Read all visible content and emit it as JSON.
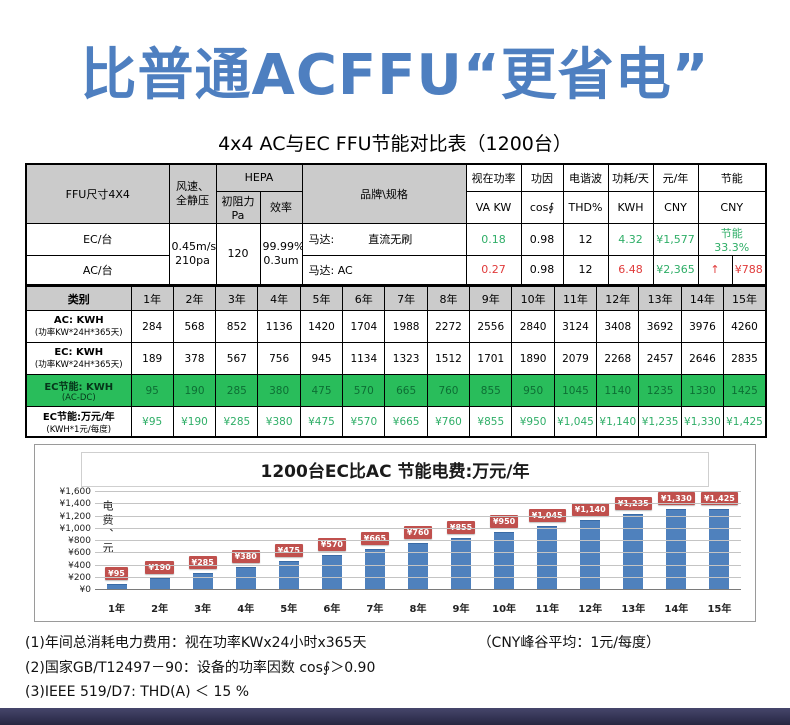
{
  "hero": {
    "title": "比普通ACFFU“更省电”"
  },
  "table_title": "4x4 AC与EC FFU节能对比表（1200台）",
  "spec_table": {
    "headers": {
      "ffu_size": "FFU尺寸4X4",
      "wind": "风速、\n全静压",
      "hepa": "HEPA",
      "initial_resistance": "初阻力Pa",
      "efficiency": "效率",
      "brand_spec": "品牌\\规格",
      "apparent_power": "视在功率",
      "va_kw": "VA KW",
      "power_factor": "功因",
      "cos": "cos∮",
      "harmonics": "电谐波",
      "thd": "THD%",
      "consumption_day": "功耗/天",
      "kwh": "KWH",
      "yuan_year": "元/年",
      "cny1": "CNY",
      "saving": "节能",
      "cny2": "CNY"
    },
    "shared": {
      "wind_value": "0.45m/s\n210pa",
      "resistance_value": "120",
      "efficiency_value": "99.99%\n0.3um"
    },
    "ec_row": {
      "label": "EC/台",
      "motor_label": "马达:",
      "motor_value": "直流无刷",
      "va": "0.18",
      "cos": "0.98",
      "thd": "12",
      "kwh": "4.32",
      "cny": "¥1,577",
      "saving_label": "节能",
      "saving_value": "33.3%"
    },
    "ac_row": {
      "label": "AC/台",
      "motor": "马达: AC",
      "va": "0.27",
      "cos": "0.98",
      "thd": "12",
      "kwh": "6.48",
      "cny": "¥2,365",
      "arrow": "↑",
      "amount": "¥788"
    }
  },
  "years_table": {
    "category_header": "类别",
    "year_labels": [
      "1年",
      "2年",
      "3年",
      "4年",
      "5年",
      "6年",
      "7年",
      "8年",
      "9年",
      "10年",
      "11年",
      "12年",
      "13年",
      "14年",
      "15年"
    ],
    "rows": [
      {
        "label_line1": "AC: KWH",
        "label_line2": "(功率KW*24H*365天)",
        "style": "plain",
        "values": [
          "284",
          "568",
          "852",
          "1136",
          "1420",
          "1704",
          "1988",
          "2272",
          "2556",
          "2840",
          "3124",
          "3408",
          "3692",
          "3976",
          "4260"
        ]
      },
      {
        "label_line1": "EC: KWH",
        "label_line2": "(功率KW*24H*365天)",
        "style": "plain",
        "values": [
          "189",
          "378",
          "567",
          "756",
          "945",
          "1134",
          "1323",
          "1512",
          "1701",
          "1890",
          "2079",
          "2268",
          "2457",
          "2646",
          "2835"
        ]
      },
      {
        "label_line1": "EC节能: KWH",
        "label_line2": "(AC-DC)",
        "style": "green",
        "values": [
          "95",
          "190",
          "285",
          "380",
          "475",
          "570",
          "665",
          "760",
          "855",
          "950",
          "1045",
          "1140",
          "1235",
          "1330",
          "1425"
        ]
      },
      {
        "label_line1": "EC节能:万元/年",
        "label_line2": "(KWH*1元/每度)",
        "style": "green-text",
        "values": [
          "¥95",
          "¥190",
          "¥285",
          "¥380",
          "¥475",
          "¥570",
          "¥665",
          "¥760",
          "¥855",
          "¥950",
          "¥1,045",
          "¥1,140",
          "¥1,235",
          "¥1,330",
          "¥1,425"
        ]
      }
    ]
  },
  "chart_data": {
    "type": "bar",
    "title": "1200台EC比AC 节能电费:万元/年",
    "ylabel": "电费、元",
    "xlabel": "",
    "categories": [
      "1年",
      "2年",
      "3年",
      "4年",
      "5年",
      "6年",
      "7年",
      "8年",
      "9年",
      "10年",
      "11年",
      "12年",
      "13年",
      "14年",
      "15年"
    ],
    "values": [
      95,
      190,
      285,
      380,
      475,
      570,
      665,
      760,
      855,
      950,
      1045,
      1140,
      1235,
      1330,
      1425
    ],
    "labels": [
      "¥95",
      "¥190",
      "¥285",
      "¥380",
      "¥475",
      "¥570",
      "¥665",
      "¥760",
      "¥855",
      "¥950",
      "¥1,045",
      "¥1,140",
      "¥1,235",
      "¥1,330",
      "¥1,425"
    ],
    "yticks": [
      "¥0",
      "¥200",
      "¥400",
      "¥600",
      "¥800",
      "¥1,000",
      "¥1,200",
      "¥1,400",
      "¥1,600"
    ],
    "ylim": [
      0,
      1600
    ],
    "grid": true,
    "legend": false,
    "bar_color": "#4f81bd",
    "label_bg_color": "#c0504d"
  },
  "notes": {
    "note1": "(1)年间总消耗电力费用：视在功率KWx24小时x365天",
    "note1_right": "（CNY峰谷平均：1元/每度）",
    "note2": "(2)国家GB/T12497－90：设备的功率因数 cos∮＞0.90",
    "note3": "(3)IEEE 519/D7: THD(A) ＜ 15 %"
  },
  "colors": {
    "accent_blue": "#4e7fc0",
    "bar_blue": "#4f81bd",
    "label_red": "#c0504d",
    "green_row_bg": "#29bd5b",
    "green_text": "#2fae67",
    "red_text": "#e03a3a"
  }
}
